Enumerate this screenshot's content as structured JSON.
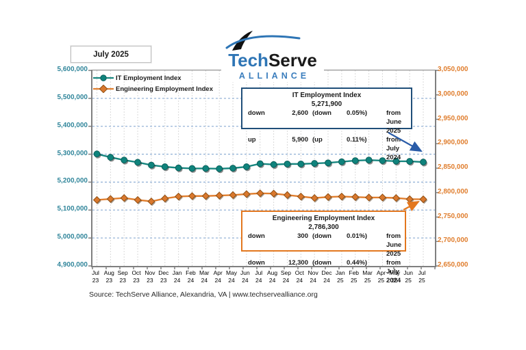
{
  "report": {
    "period_label": "July 2025",
    "source": "Source: TechServe Alliance, Alexandria, VA | www.techservealliance.org"
  },
  "logo": {
    "tech": "Tech",
    "serve": "Serve",
    "alliance": "ALLIANCE",
    "blue": "#2e75b5"
  },
  "callouts": {
    "it": {
      "title": "IT Employment Index",
      "value": "5,271,900",
      "rows": [
        {
          "dir": "down",
          "amount": "2,600",
          "pw": "(down",
          "pv": "0.05%)",
          "ref": "from June 2025"
        },
        {
          "dir": "up",
          "amount": "5,900",
          "pw": "(up",
          "pv": "0.11%)",
          "ref": "from July 2024"
        }
      ]
    },
    "eng": {
      "title": "Engineering Employment Index",
      "value": "2,786,300",
      "rows": [
        {
          "dir": "down",
          "amount": "300",
          "pw": "(down",
          "pv": "0.01%)",
          "ref": "from June 2025"
        },
        {
          "dir": "down",
          "amount": "12,300",
          "pw": "(down",
          "pv": "0.44%)",
          "ref": "from July 2024"
        }
      ]
    }
  },
  "chart_data": {
    "type": "line",
    "title": "",
    "categories": [
      "Jul 23",
      "Aug 23",
      "Sep 23",
      "Oct 23",
      "Nov 23",
      "Dec 23",
      "Jan 24",
      "Feb 24",
      "Mar 24",
      "Apr 24",
      "May 24",
      "Jun 24",
      "Jul 24",
      "Aug 24",
      "Sep 24",
      "Oct 24",
      "Nov 24",
      "Dec 24",
      "Jan 25",
      "Feb 25",
      "Mar 25",
      "Apr 25",
      "May 25",
      "Jun 25",
      "Jul 25"
    ],
    "series": [
      {
        "name": "IT Employment Index",
        "axis": "left",
        "marker": "circle",
        "color": "#17867f",
        "marker_fill": "#0f837c",
        "marker_edge": "#0a5f5a",
        "values": [
          5301000,
          5289000,
          5279000,
          5271000,
          5261000,
          5255000,
          5251000,
          5249000,
          5249000,
          5248000,
          5250000,
          5255000,
          5266000,
          5263000,
          5265000,
          5265000,
          5267000,
          5269000,
          5273000,
          5277000,
          5279000,
          5277000,
          5275000,
          5274500,
          5271900
        ]
      },
      {
        "name": "Engineering Employment Index",
        "axis": "right",
        "marker": "diamond",
        "color": "#e07e2e",
        "marker_fill": "#d9782d",
        "marker_edge": "#8f4e12",
        "values": [
          2785000,
          2787000,
          2789000,
          2785000,
          2782000,
          2788000,
          2792000,
          2793000,
          2793000,
          2794000,
          2795000,
          2797000,
          2798600,
          2798000,
          2795000,
          2792000,
          2789000,
          2791000,
          2792000,
          2791000,
          2790000,
          2790000,
          2789000,
          2786600,
          2786300
        ]
      }
    ],
    "left_axis": {
      "min": 4900000,
      "max": 5600000,
      "step": 100000,
      "color": "#31869b"
    },
    "right_axis": {
      "min": 2650000,
      "max": 3050000,
      "step": 50000,
      "color": "#e07e2e"
    },
    "grid": {
      "h_on": true,
      "v_on": true,
      "h_color": "#95b3d7",
      "v_color": "#d9d9d9",
      "axis_color": "#7f7f7f"
    },
    "legend_position": "top-left"
  }
}
